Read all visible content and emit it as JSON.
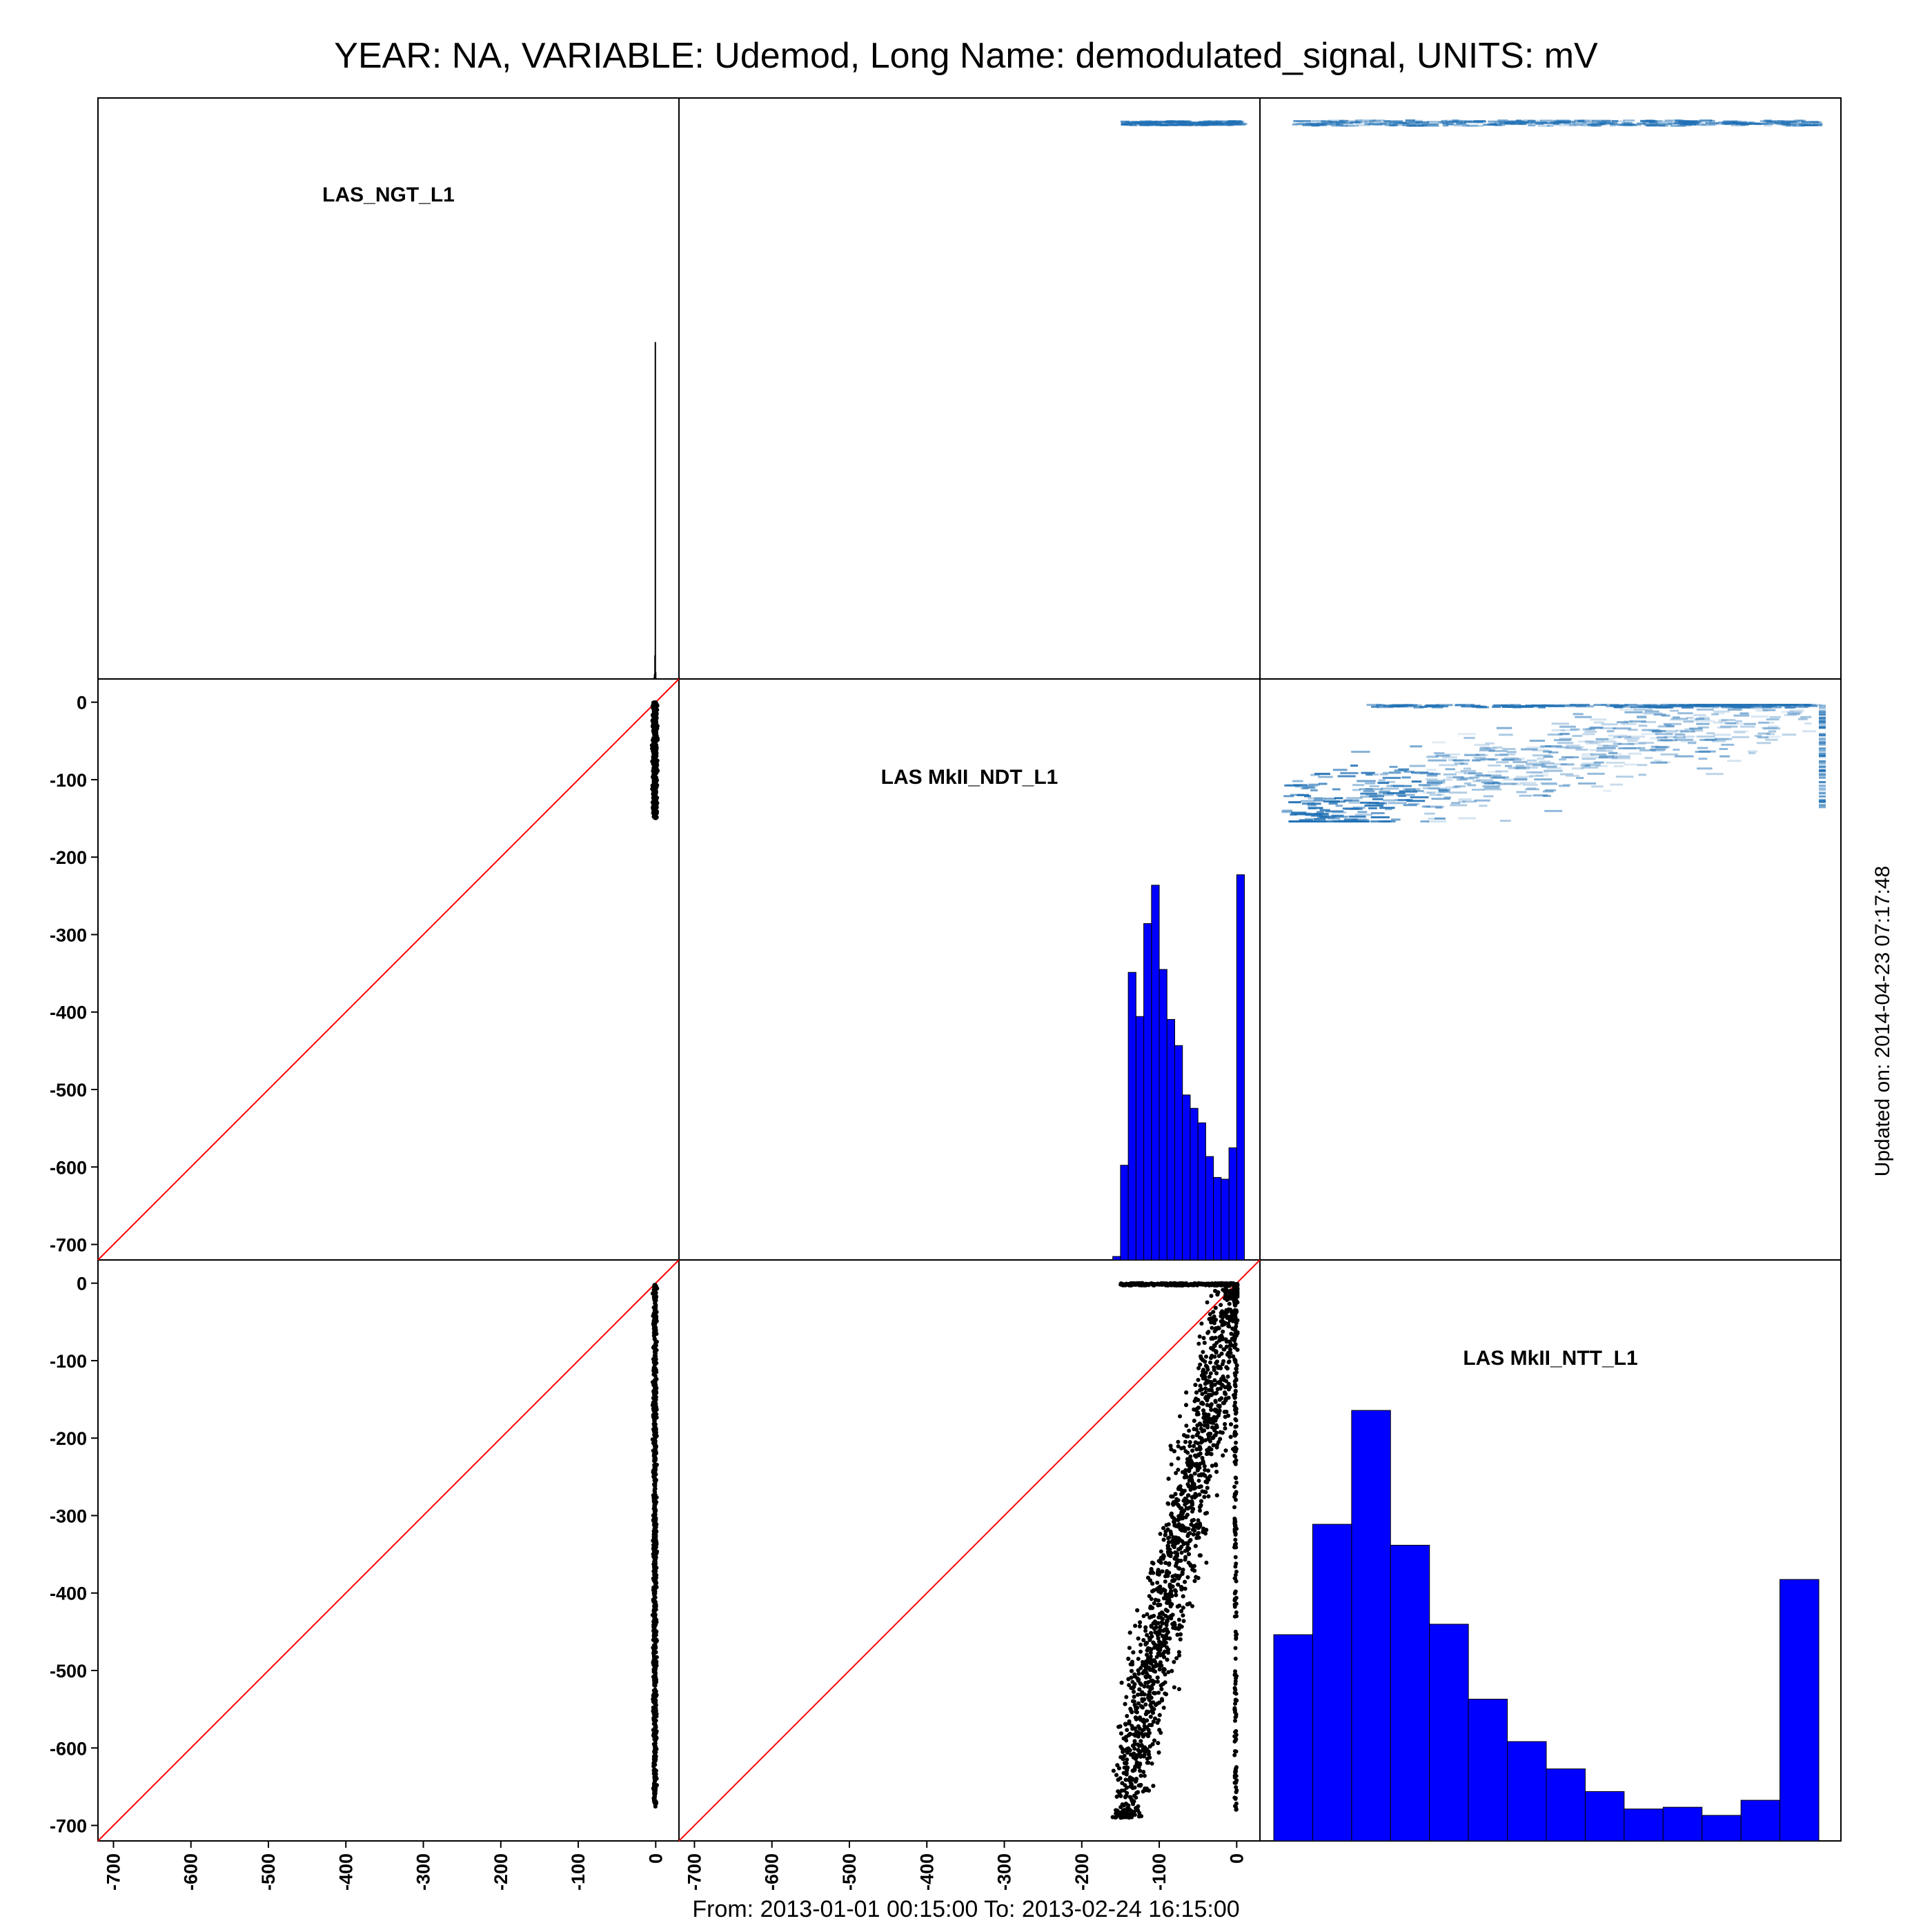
{
  "title": "YEAR: NA, VARIABLE: Udemod, Long Name: demodulated_signal, UNITS: mV",
  "footer": "From: 2013-01-01 00:15:00 To: 2013-02-24 16:15:00",
  "side_note": "Updated on: 2014-04-23 07:17:48",
  "colors": {
    "hist": "#0000ff",
    "scatter": "#000000",
    "identity_line": "#ff0000",
    "density": "#2171b5"
  },
  "chart_data": {
    "type": "scatter",
    "layout": "scatterplot-matrix",
    "variables": [
      "LAS_NGT_L1",
      "LAS MkII_NDT_L1",
      "LAS MkII_NTT_L1"
    ],
    "axis": {
      "ticks": [
        -700,
        -600,
        -500,
        -400,
        -300,
        -200,
        -100,
        0
      ],
      "labels": [
        "-700",
        "-600",
        "-500",
        "-400",
        "-300",
        "-200",
        "-100",
        "0"
      ],
      "lim": [
        -720,
        30
      ]
    },
    "diagonal_histograms": [
      {
        "variable": "LAS_NGT_L1",
        "spike": [
          {
            "x": -2,
            "rel": 0.005
          },
          {
            "x": -1.5,
            "rel": 0.015
          },
          {
            "x": -1,
            "rel": 0.07
          },
          {
            "x": -0.5,
            "rel": 1.0
          },
          {
            "x": 0,
            "rel": 0.02
          }
        ]
      },
      {
        "variable": "LAS MkII_NDT_L1",
        "bins": [
          -155,
          -145,
          -135,
          -125,
          -115,
          -105,
          -95,
          -85,
          -75,
          -65,
          -55,
          -45,
          -35,
          -25,
          -15,
          -5,
          5
        ],
        "rel_heights": [
          0.006,
          0.163,
          0.495,
          0.419,
          0.579,
          0.645,
          0.5,
          0.414,
          0.369,
          0.284,
          0.261,
          0.236,
          0.178,
          0.142,
          0.139,
          0.193,
          0.663
        ]
      },
      {
        "variable": "LAS MkII_NTT_L1",
        "bins": [
          -150,
          -137.5,
          -125,
          -112.5,
          -100,
          -87.5,
          -75,
          -62.5,
          -50,
          -37.5,
          -25,
          -12.5,
          0,
          12.5
        ],
        "rel_heights": [
          0.355,
          0.545,
          0.741,
          0.509,
          0.373,
          0.244,
          0.171,
          0.124,
          0.085,
          0.055,
          0.058,
          0.044,
          0.07,
          0.45
        ]
      }
    ],
    "scatter_panels": [
      {
        "x_var": "LAS_NGT_L1",
        "y_var": "LAS MkII_NDT_L1",
        "note": "x ≈ -1 to 0; y from 0 to about -150",
        "approx_points": 600
      },
      {
        "x_var": "LAS_NGT_L1",
        "y_var": "LAS MkII_NTT_L1",
        "note": "x ≈ -1 to 0; y from 0 to about -680",
        "approx_points": 900
      },
      {
        "x_var": "LAS MkII_NDT_L1",
        "y_var": "LAS MkII_NTT_L1",
        "note": "positive correlation from (-150,-680) to (0,0); band of points at y ≈ 0 for x from -150 to 0",
        "approx_points": 2500
      }
    ],
    "density_panels": [
      {
        "x_var": "LAS MkII_NTT_L1",
        "y_var": "LAS_NGT_L1",
        "note": "thin band along top"
      },
      {
        "x_var": "LAS MkII_NTT_L1",
        "y_var": "LAS MkII_NDT_L1",
        "note": "rising band from lower-left to upper-right"
      },
      {
        "x_var": "LAS MkII_NDT_L1",
        "y_var": "LAS_NGT_L1",
        "note": "thin band along top"
      }
    ],
    "identity_line": true,
    "grid": false,
    "legend": "none"
  }
}
